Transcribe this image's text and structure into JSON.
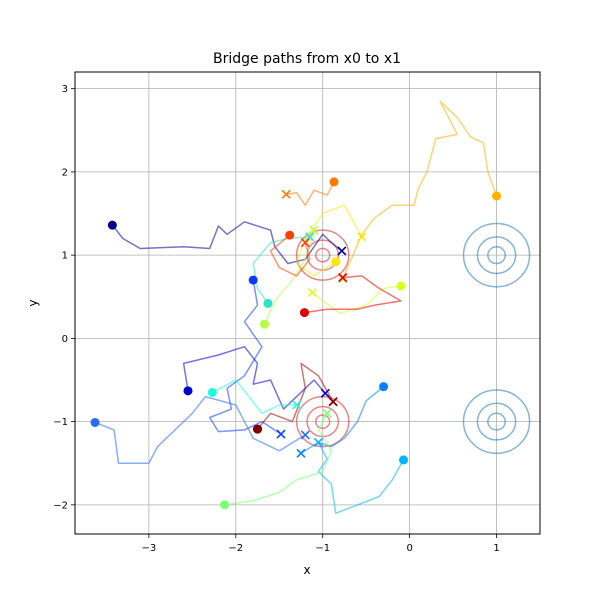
{
  "chart_data": {
    "type": "line",
    "title": "Bridge paths from x0 to x1",
    "xlabel": "x",
    "ylabel": "y",
    "xlim": [
      -3.85,
      1.5
    ],
    "ylim": [
      -2.35,
      3.2
    ],
    "xticks": [
      -3,
      -2,
      -1,
      0,
      1
    ],
    "yticks": [
      -2,
      -1,
      0,
      1,
      2,
      3
    ],
    "xtick_labels": [
      "−3",
      "−2",
      "−1",
      "0",
      "1"
    ],
    "ytick_labels": [
      "−2",
      "−1",
      "0",
      "1",
      "2",
      "3"
    ],
    "grid": true,
    "colormap": "jet",
    "contours": [
      {
        "center": [
          1.0,
          1.0
        ],
        "radii": [
          0.1,
          0.22,
          0.38
        ],
        "color": "#1f77b4"
      },
      {
        "center": [
          1.0,
          -1.0
        ],
        "radii": [
          0.1,
          0.22,
          0.38
        ],
        "color": "#1f77b4"
      },
      {
        "center": [
          -1.0,
          1.0
        ],
        "radii": [
          0.08,
          0.18,
          0.3
        ],
        "color": "#d62728"
      },
      {
        "center": [
          -1.0,
          -1.0
        ],
        "radii": [
          0.08,
          0.18,
          0.3
        ],
        "color": "#d62728"
      }
    ],
    "series": [
      {
        "color": "#00008f",
        "start": [
          -3.42,
          1.36
        ],
        "end": [
          -0.78,
          1.05
        ],
        "path": [
          [
            -3.42,
            1.36
          ],
          [
            -3.3,
            1.2
          ],
          [
            -3.1,
            1.08
          ],
          [
            -2.6,
            1.1
          ],
          [
            -2.3,
            1.08
          ],
          [
            -2.2,
            1.35
          ],
          [
            -2.1,
            1.25
          ],
          [
            -1.9,
            1.4
          ],
          [
            -1.6,
            1.3
          ],
          [
            -1.55,
            1.1
          ],
          [
            -1.4,
            0.9
          ],
          [
            -1.2,
            0.95
          ],
          [
            -1.0,
            1.25
          ],
          [
            -0.9,
            1.15
          ],
          [
            -0.78,
            1.05
          ]
        ]
      },
      {
        "color": "#0000cd",
        "start": [
          -2.55,
          -0.63
        ],
        "end": [
          -0.97,
          -0.66
        ],
        "path": [
          [
            -2.55,
            -0.63
          ],
          [
            -2.6,
            -0.3
          ],
          [
            -2.2,
            -0.2
          ],
          [
            -1.9,
            -0.1
          ],
          [
            -1.75,
            -0.3
          ],
          [
            -1.8,
            -0.55
          ],
          [
            -1.6,
            -0.5
          ],
          [
            -1.45,
            -0.85
          ],
          [
            -1.3,
            -0.7
          ],
          [
            -1.1,
            -0.5
          ],
          [
            -0.97,
            -0.66
          ]
        ]
      },
      {
        "color": "#0a3cff",
        "start": [
          -1.8,
          0.7
        ],
        "end": [
          -1.48,
          -1.15
        ],
        "path": [
          [
            -1.8,
            0.7
          ],
          [
            -1.75,
            0.4
          ],
          [
            -1.9,
            0.2
          ],
          [
            -1.7,
            -0.1
          ],
          [
            -1.9,
            -0.45
          ],
          [
            -2.1,
            -0.6
          ],
          [
            -2.05,
            -0.85
          ],
          [
            -2.3,
            -0.95
          ],
          [
            -2.2,
            -1.12
          ],
          [
            -1.9,
            -1.1
          ],
          [
            -1.7,
            -1.0
          ],
          [
            -1.48,
            -1.15
          ]
        ]
      },
      {
        "color": "#2a6bff",
        "start": [
          -3.62,
          -1.01
        ],
        "end": [
          -1.2,
          -1.16
        ],
        "path": [
          [
            -3.62,
            -1.01
          ],
          [
            -3.4,
            -1.1
          ],
          [
            -3.35,
            -1.5
          ],
          [
            -3.0,
            -1.5
          ],
          [
            -2.9,
            -1.3
          ],
          [
            -2.7,
            -1.1
          ],
          [
            -2.5,
            -0.9
          ],
          [
            -2.35,
            -0.7
          ],
          [
            -2.0,
            -0.8
          ],
          [
            -1.8,
            -1.2
          ],
          [
            -1.5,
            -1.35
          ],
          [
            -1.2,
            -1.16
          ]
        ]
      },
      {
        "color": "#0080ff",
        "start": [
          -0.3,
          -0.58
        ],
        "end": [
          -1.25,
          -1.38
        ],
        "path": [
          [
            -0.3,
            -0.58
          ],
          [
            -0.5,
            -0.75
          ],
          [
            -0.6,
            -1.0
          ],
          [
            -0.75,
            -1.2
          ],
          [
            -0.9,
            -1.3
          ],
          [
            -1.05,
            -1.25
          ],
          [
            -1.25,
            -1.38
          ]
        ]
      },
      {
        "color": "#00b4ff",
        "start": [
          -0.07,
          -1.46
        ],
        "end": [
          -1.05,
          -1.25
        ],
        "path": [
          [
            -0.07,
            -1.46
          ],
          [
            -0.2,
            -1.7
          ],
          [
            -0.35,
            -1.9
          ],
          [
            -0.6,
            -2.0
          ],
          [
            -0.85,
            -2.1
          ],
          [
            -0.9,
            -1.75
          ],
          [
            -1.05,
            -1.6
          ],
          [
            -0.95,
            -1.45
          ],
          [
            -1.05,
            -1.25
          ]
        ]
      },
      {
        "color": "#1cffdb",
        "start": [
          -2.27,
          -0.65
        ],
        "end": [
          -1.3,
          -0.8
        ],
        "path": [
          [
            -2.27,
            -0.65
          ],
          [
            -2.0,
            -0.5
          ],
          [
            -1.85,
            -0.7
          ],
          [
            -1.7,
            -0.9
          ],
          [
            -1.5,
            -0.8
          ],
          [
            -1.3,
            -0.8
          ]
        ]
      },
      {
        "color": "#2fe3c9",
        "start": [
          -1.63,
          0.42
        ],
        "end": [
          -1.15,
          1.22
        ],
        "path": [
          [
            -1.63,
            0.42
          ],
          [
            -1.75,
            0.6
          ],
          [
            -1.8,
            0.9
          ],
          [
            -1.6,
            1.15
          ],
          [
            -1.4,
            1.2
          ],
          [
            -1.15,
            1.22
          ]
        ]
      },
      {
        "color": "#7dff7a",
        "start": [
          -2.13,
          -2.0
        ],
        "end": [
          -0.95,
          -0.9
        ],
        "path": [
          [
            -2.13,
            -2.0
          ],
          [
            -1.8,
            -1.95
          ],
          [
            -1.5,
            -1.85
          ],
          [
            -1.3,
            -1.7
          ],
          [
            -1.0,
            -1.6
          ],
          [
            -0.9,
            -1.35
          ],
          [
            -1.05,
            -1.1
          ],
          [
            -0.95,
            -0.9
          ]
        ]
      },
      {
        "color": "#b4ff43",
        "start": [
          -1.67,
          0.17
        ],
        "end": [
          -1.1,
          1.3
        ],
        "path": [
          [
            -1.67,
            0.17
          ],
          [
            -1.55,
            0.45
          ],
          [
            -1.35,
            0.7
          ],
          [
            -1.2,
            0.95
          ],
          [
            -1.1,
            1.3
          ]
        ]
      },
      {
        "color": "#d7ff1f",
        "start": [
          -0.1,
          0.63
        ],
        "end": [
          -1.12,
          0.55
        ],
        "path": [
          [
            -0.1,
            0.63
          ],
          [
            -0.3,
            0.6
          ],
          [
            -0.5,
            0.4
          ],
          [
            -0.8,
            0.3
          ],
          [
            -1.0,
            0.45
          ],
          [
            -1.12,
            0.55
          ]
        ]
      },
      {
        "color": "#ffe600",
        "start": [
          -0.85,
          0.92
        ],
        "end": [
          -0.55,
          1.22
        ],
        "path": [
          [
            -0.85,
            0.92
          ],
          [
            -1.1,
            0.75
          ],
          [
            -1.3,
            0.9
          ],
          [
            -1.2,
            1.2
          ],
          [
            -1.0,
            1.5
          ],
          [
            -0.75,
            1.6
          ],
          [
            -0.55,
            1.22
          ]
        ]
      },
      {
        "color": "#ffb100",
        "start": [
          1.0,
          1.71
        ],
        "end": [
          -0.77,
          0.72
        ],
        "path": [
          [
            1.0,
            1.71
          ],
          [
            0.9,
            2.0
          ],
          [
            0.85,
            2.35
          ],
          [
            0.7,
            2.42
          ],
          [
            0.55,
            2.65
          ],
          [
            0.35,
            2.85
          ],
          [
            0.55,
            2.45
          ],
          [
            0.3,
            2.4
          ],
          [
            0.2,
            2.0
          ],
          [
            0.1,
            1.8
          ],
          [
            0.05,
            1.6
          ],
          [
            -0.2,
            1.6
          ],
          [
            -0.4,
            1.45
          ],
          [
            -0.55,
            1.25
          ],
          [
            -0.65,
            1.0
          ],
          [
            -0.77,
            0.72
          ]
        ]
      },
      {
        "color": "#ff7b00",
        "start": [
          -0.87,
          1.88
        ],
        "end": [
          -1.42,
          1.73
        ],
        "path": [
          [
            -0.87,
            1.88
          ],
          [
            -0.95,
            1.72
          ],
          [
            -1.1,
            1.78
          ],
          [
            -1.2,
            1.6
          ],
          [
            -1.3,
            1.75
          ],
          [
            -1.42,
            1.73
          ]
        ]
      },
      {
        "color": "#ff4000",
        "start": [
          -1.38,
          1.24
        ],
        "end": [
          -1.2,
          1.15
        ],
        "path": [
          [
            -1.38,
            1.24
          ],
          [
            -1.6,
            1.05
          ],
          [
            -1.5,
            0.85
          ],
          [
            -1.3,
            0.75
          ],
          [
            -1.15,
            0.95
          ],
          [
            -1.2,
            1.15
          ]
        ]
      },
      {
        "color": "#e30000",
        "start": [
          -1.21,
          0.31
        ],
        "end": [
          -0.77,
          0.73
        ],
        "path": [
          [
            -1.21,
            0.31
          ],
          [
            -0.95,
            0.35
          ],
          [
            -0.6,
            0.35
          ],
          [
            -0.4,
            0.4
          ],
          [
            -0.1,
            0.45
          ],
          [
            -0.35,
            0.6
          ],
          [
            -0.55,
            0.75
          ],
          [
            -0.77,
            0.73
          ]
        ]
      },
      {
        "color": "#ad0000",
        "start": [
          -1.75,
          -1.09
        ],
        "end": [
          -0.88,
          -0.76
        ],
        "path": [
          [
            -1.75,
            -1.09
          ],
          [
            -1.6,
            -0.9
          ],
          [
            -1.35,
            -1.0
          ],
          [
            -1.2,
            -0.6
          ],
          [
            -1.25,
            -0.3
          ],
          [
            -1.05,
            -0.45
          ],
          [
            -0.88,
            -0.76
          ]
        ]
      },
      {
        "color": "#800000",
        "start": [
          -1.75,
          -1.09
        ],
        "end": [
          -0.88,
          -0.76
        ],
        "path": []
      }
    ],
    "start_marker": "circle",
    "end_marker": "x"
  }
}
